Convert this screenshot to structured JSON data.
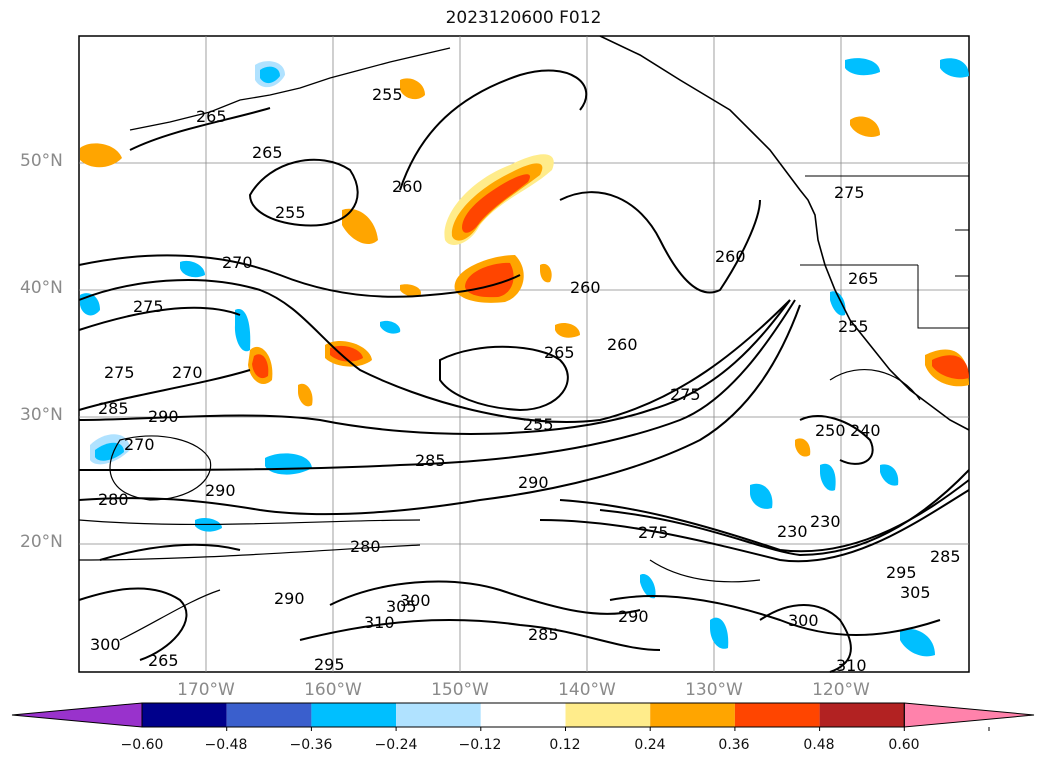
{
  "title": "2023120600 F012",
  "lat_labels": [
    "50°N",
    "40°N",
    "30°N",
    "20°N"
  ],
  "lon_labels": [
    "170°W",
    "160°W",
    "150°W",
    "140°W",
    "130°W",
    "120°W"
  ],
  "contour_labels": [
    "265",
    "265",
    "255",
    "260",
    "255",
    "270",
    "275",
    "275",
    "270",
    "285",
    "290",
    "270",
    "285",
    "290",
    "290",
    "280",
    "280",
    "255",
    "265",
    "260",
    "260",
    "260",
    "275",
    "275",
    "265",
    "255",
    "250",
    "240",
    "230",
    "230",
    "275",
    "285",
    "295",
    "305",
    "300",
    "310",
    "300",
    "290",
    "305",
    "300",
    "290",
    "285",
    "295",
    "310",
    "265"
  ],
  "colorbar": {
    "ticks": [
      "−0.60",
      "−0.48",
      "−0.36",
      "−0.24",
      "−0.12",
      "0.12",
      "0.24",
      "0.36",
      "0.48",
      "0.60"
    ],
    "colors": [
      "#9932cc",
      "#00008b",
      "#3a5fcd",
      "#00bfff",
      "#b0e2ff",
      "#ffffff",
      "#ffec8b",
      "#ffa500",
      "#ff4500",
      "#b22222",
      "#ff82ab"
    ]
  }
}
